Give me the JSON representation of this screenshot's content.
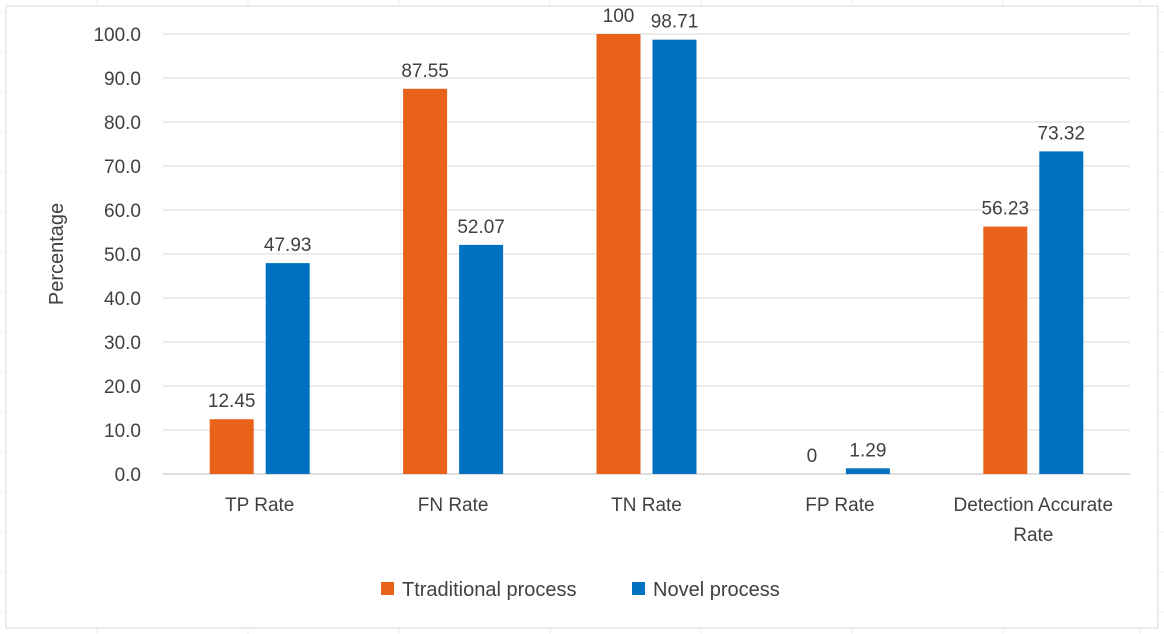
{
  "chart_data": {
    "type": "bar",
    "categories": [
      [
        "TP Rate"
      ],
      [
        "FN Rate"
      ],
      [
        "TN Rate"
      ],
      [
        "FP Rate"
      ],
      [
        "Detection Accurate",
        "Rate"
      ]
    ],
    "series": [
      {
        "name": "Ttraditional process",
        "color": "#E8621A",
        "values": [
          12.45,
          87.55,
          100,
          0,
          56.23
        ],
        "labels": [
          "12.45",
          "87.55",
          "100",
          "0",
          "56.23"
        ]
      },
      {
        "name": "Novel process",
        "color": "#0070C0",
        "values": [
          47.93,
          52.07,
          98.71,
          1.29,
          73.32
        ],
        "labels": [
          "47.93",
          "52.07",
          "98.71",
          "1.29",
          "73.32"
        ]
      }
    ],
    "ylabel": "Percentage",
    "xlabel": "",
    "ylim": [
      0,
      100
    ],
    "yticks": [
      "0.0",
      "10.0",
      "20.0",
      "30.0",
      "40.0",
      "50.0",
      "60.0",
      "70.0",
      "80.0",
      "90.0",
      "100.0"
    ],
    "grid": true,
    "legend_position": "bottom"
  }
}
